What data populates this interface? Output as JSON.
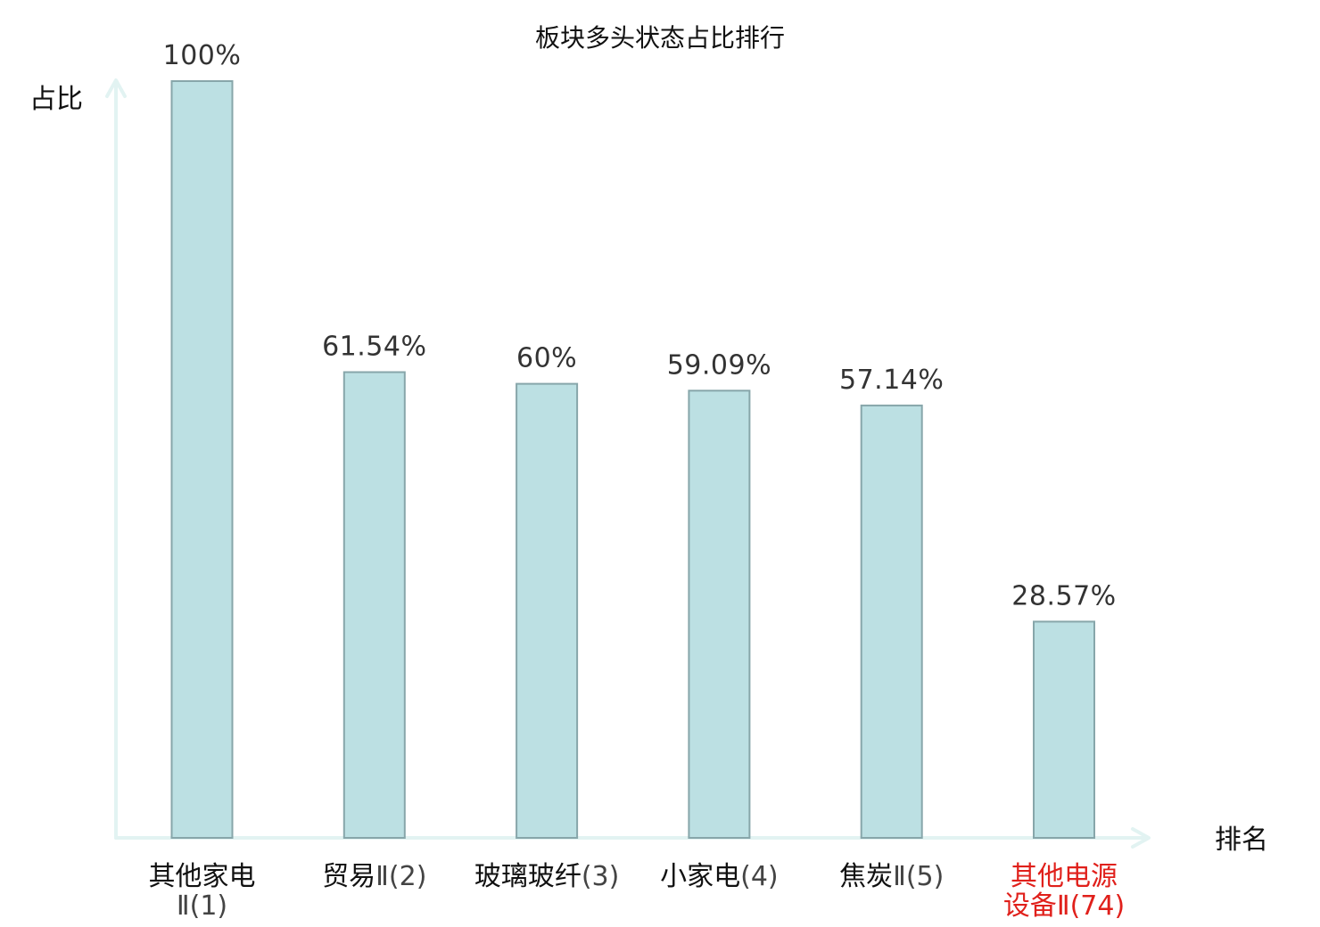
{
  "chart_data": {
    "type": "bar",
    "title": "板块多头状态占比排行",
    "ylabel": "占比",
    "xlabel": "排名",
    "ylim": [
      0,
      100
    ],
    "grid": false,
    "legend": "none",
    "categories": [
      {
        "lines": [
          [
            {
              "t": "其他家电",
              "k": "main"
            }
          ],
          [
            {
              "t": "Ⅱ(1)",
              "k": "num"
            }
          ]
        ],
        "highlight": false
      },
      {
        "lines": [
          [
            {
              "t": "贸易",
              "k": "main"
            },
            {
              "t": "Ⅱ(2)",
              "k": "num"
            }
          ]
        ],
        "highlight": false
      },
      {
        "lines": [
          [
            {
              "t": "玻璃玻纤",
              "k": "main"
            },
            {
              "t": "(3)",
              "k": "num"
            }
          ]
        ],
        "highlight": false
      },
      {
        "lines": [
          [
            {
              "t": "小家电",
              "k": "main"
            },
            {
              "t": "(4)",
              "k": "num"
            }
          ]
        ],
        "highlight": false
      },
      {
        "lines": [
          [
            {
              "t": "焦炭",
              "k": "main"
            },
            {
              "t": "Ⅱ(5)",
              "k": "num"
            }
          ]
        ],
        "highlight": false
      },
      {
        "lines": [
          [
            {
              "t": "其他电源",
              "k": "main"
            }
          ],
          [
            {
              "t": "设备",
              "k": "main"
            },
            {
              "t": "Ⅱ(74)",
              "k": "num"
            }
          ]
        ],
        "highlight": true
      }
    ],
    "values": [
      100,
      61.54,
      60,
      59.09,
      57.14,
      28.57
    ],
    "value_labels": [
      "100%",
      "61.54%",
      "60%",
      "59.09%",
      "57.14%",
      "28.57%"
    ],
    "colors": {
      "bar_fill": "#bce0e3",
      "bar_stroke": "#87a6aa",
      "axis": "#e2f3f2",
      "highlight": "#e0201b"
    }
  }
}
